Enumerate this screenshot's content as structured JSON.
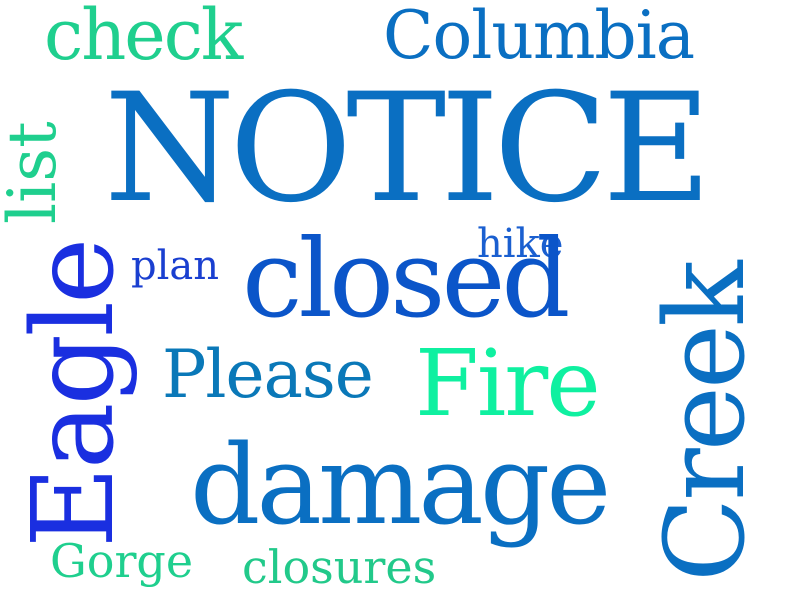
{
  "word_cloud": {
    "words": {
      "notice": {
        "text": "NOTICE",
        "color": "#0a6fc2"
      },
      "check": {
        "text": "check",
        "color": "#1fcf8e"
      },
      "columbia": {
        "text": "Columbia",
        "color": "#0a6fc2"
      },
      "list": {
        "text": "list",
        "color": "#1fcf8e"
      },
      "eagle": {
        "text": "Eagle",
        "color": "#1a2fe0"
      },
      "plan": {
        "text": "plan",
        "color": "#1a3fd0"
      },
      "hike": {
        "text": "hike",
        "color": "#1a5fd0"
      },
      "closed": {
        "text": "closed",
        "color": "#0b55c9"
      },
      "please": {
        "text": "Please",
        "color": "#0a78b8"
      },
      "fire": {
        "text": "Fire",
        "color": "#0ff0a0"
      },
      "creek": {
        "text": "Creek",
        "color": "#0a6fc2"
      },
      "damage": {
        "text": "damage",
        "color": "#0a6fc2"
      },
      "gorge": {
        "text": "Gorge",
        "color": "#1fcf8e"
      },
      "closures": {
        "text": "closures",
        "color": "#22c98a"
      }
    }
  }
}
